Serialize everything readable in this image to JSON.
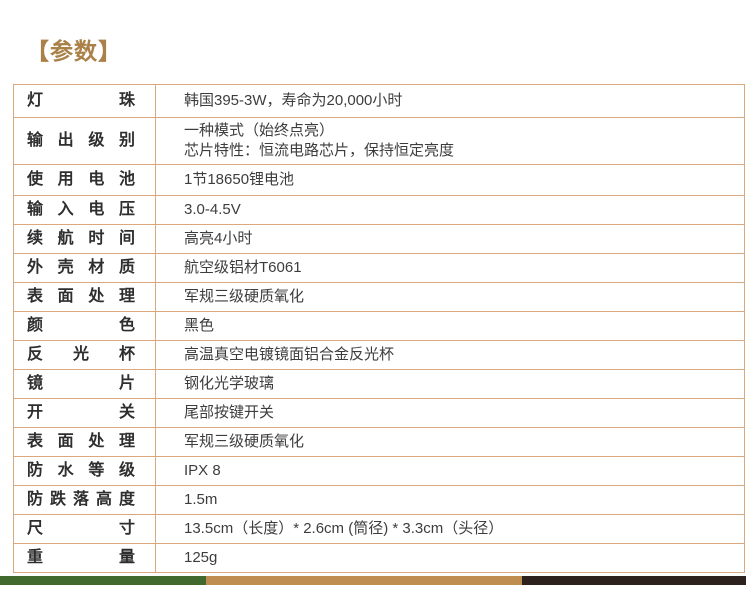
{
  "page_title": "【参数】",
  "spec_table": {
    "rows": [
      {
        "label": "灯珠",
        "value": "韩国395-3W，寿命为20,000小时"
      },
      {
        "label": "输出级别",
        "value": "一种模式（始终点亮）\n芯片特性：恒流电路芯片，保持恒定亮度"
      },
      {
        "label": "使用电池",
        "value": "1节18650锂电池"
      },
      {
        "label": "输入电压",
        "value": "3.0-4.5V"
      },
      {
        "label": "续航时间",
        "value": "高亮4小时"
      },
      {
        "label": "外壳材质",
        "value": "航空级铝材T6061"
      },
      {
        "label": "表面处理",
        "value": "军规三级硬质氧化"
      },
      {
        "label": "颜色",
        "value": "黑色"
      },
      {
        "label": "反光杯",
        "value": "高温真空电镀镜面铝合金反光杯"
      },
      {
        "label": "镜片",
        "value": "钢化光学玻璃"
      },
      {
        "label": "开关",
        "value": "尾部按键开关"
      },
      {
        "label": "表面处理",
        "value": "军规三级硬质氧化"
      },
      {
        "label": "防水等级",
        "value": "IPX 8"
      },
      {
        "label": "防跌落高度",
        "value": "1.5m"
      },
      {
        "label": "尺寸",
        "value": "13.5cm（长度）* 2.6cm (筒径) * 3.3cm（头径）"
      },
      {
        "label": "重量",
        "value": "125g"
      }
    ]
  },
  "colors": {
    "accent_gold": "#aa8148",
    "table_border": "#d9a87c",
    "label_text": "#2e2e2e",
    "value_text": "#3d3d3d",
    "footer_bar_green": "#41682d",
    "footer_bar_tan": "#c08d50",
    "footer_bar_dark": "#2c211c"
  }
}
